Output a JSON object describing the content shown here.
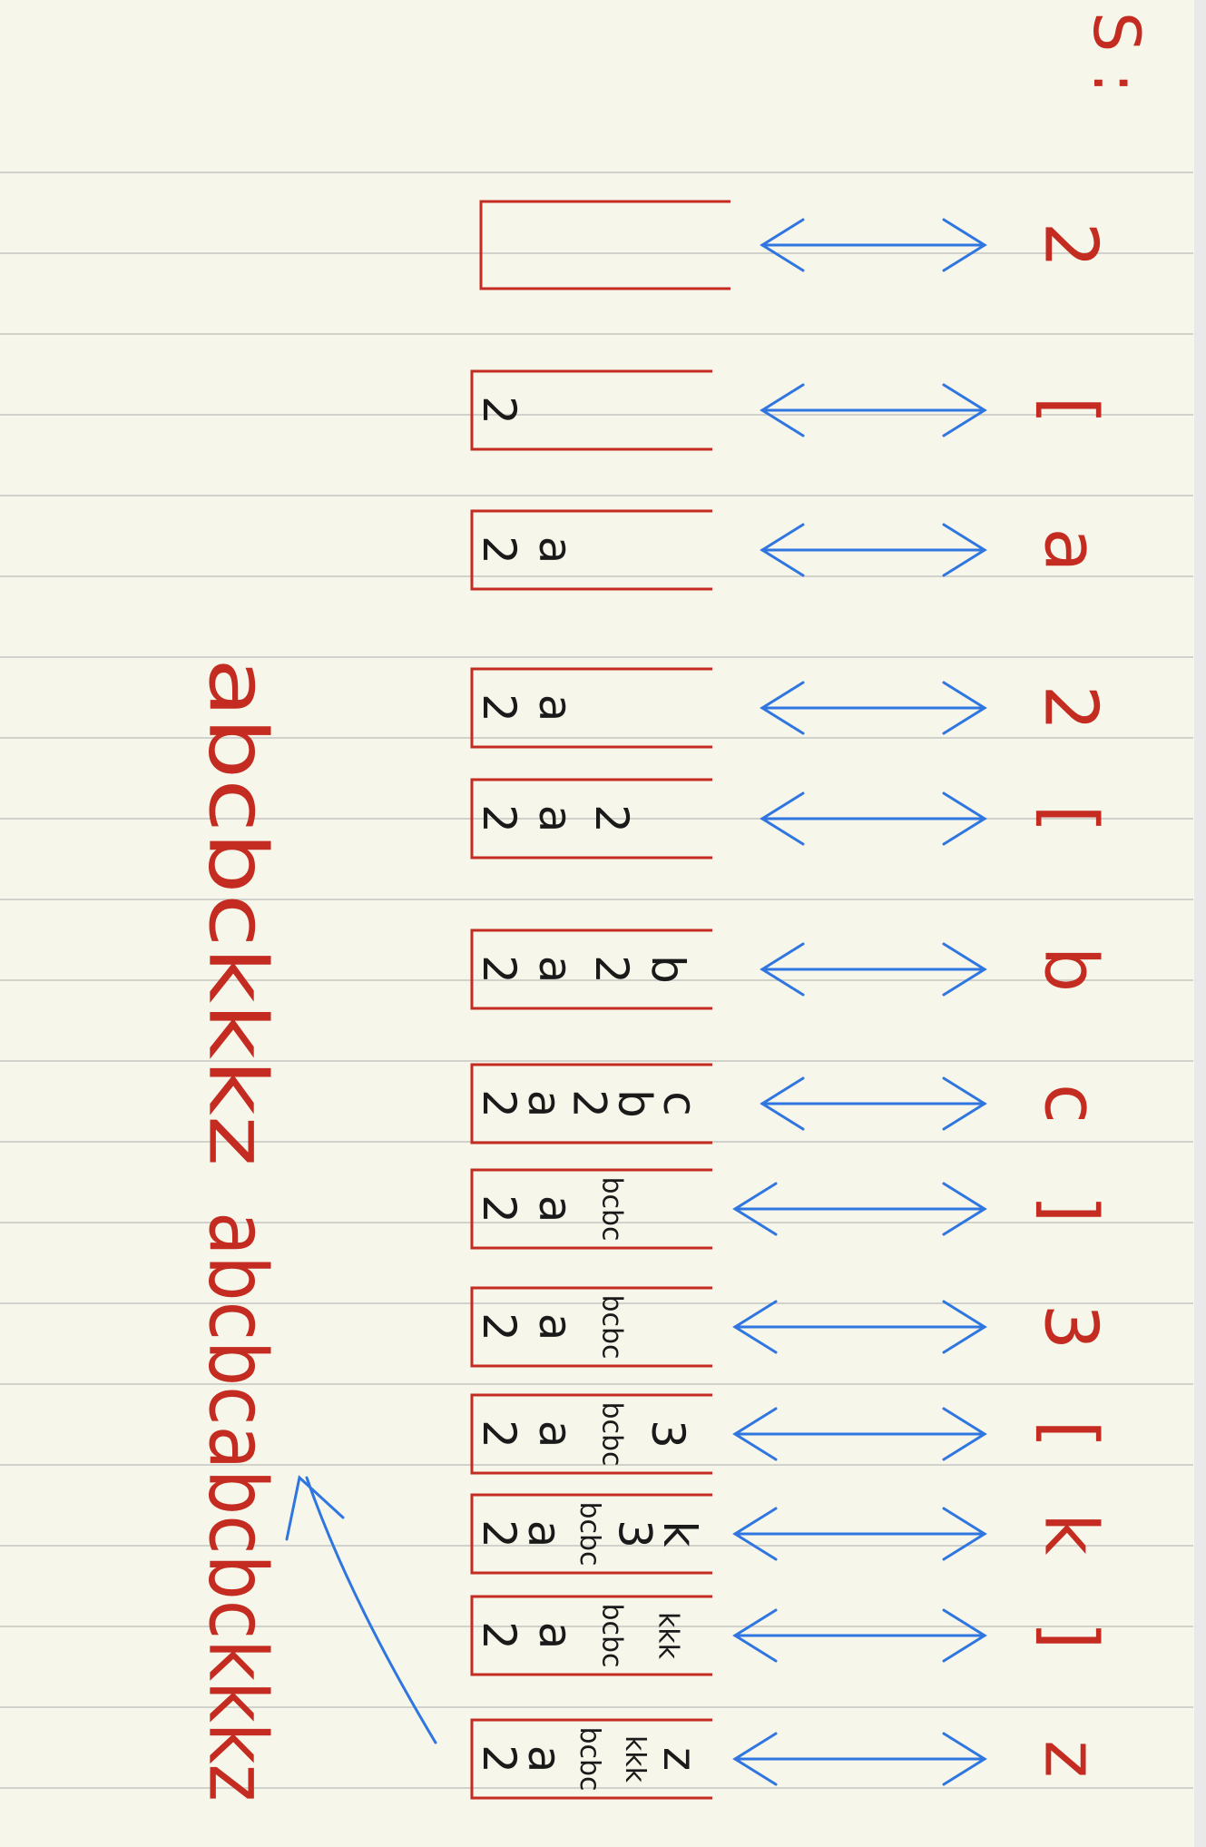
{
  "colors": {
    "paper": "#f7f6ea",
    "rule_line": "#d2d2cc",
    "ink_red": "#c42b21",
    "ink_blue": "#2f76e0",
    "ink_black": "#1a1a1a"
  },
  "input_header": "S :",
  "input_symbols": [
    "2",
    "[",
    "a",
    "2",
    "[",
    "b",
    "c",
    "]",
    "3",
    "[",
    "k",
    "]",
    "z"
  ],
  "stack_states": [
    [],
    [
      "2"
    ],
    [
      "2",
      "a"
    ],
    [
      "2",
      "a"
    ],
    [
      "2",
      "a",
      "2"
    ],
    [
      "2",
      "a",
      "2",
      "b"
    ],
    [
      "2",
      "a",
      "2",
      "b",
      "c"
    ],
    [
      "2",
      "a",
      "bcbc"
    ],
    [
      "2",
      "a",
      "bcbc"
    ],
    [
      "2",
      "a",
      "bcbc",
      "3"
    ],
    [
      "2",
      "a",
      "bcbc",
      "3",
      "k"
    ],
    [
      "2",
      "a",
      "bcbc",
      "kkk"
    ],
    [
      "2",
      "a",
      "bcbc",
      "kkk",
      "z"
    ]
  ],
  "results": {
    "intermediate": "abcbckkkz",
    "final": "abcbcabcbckkkz"
  }
}
